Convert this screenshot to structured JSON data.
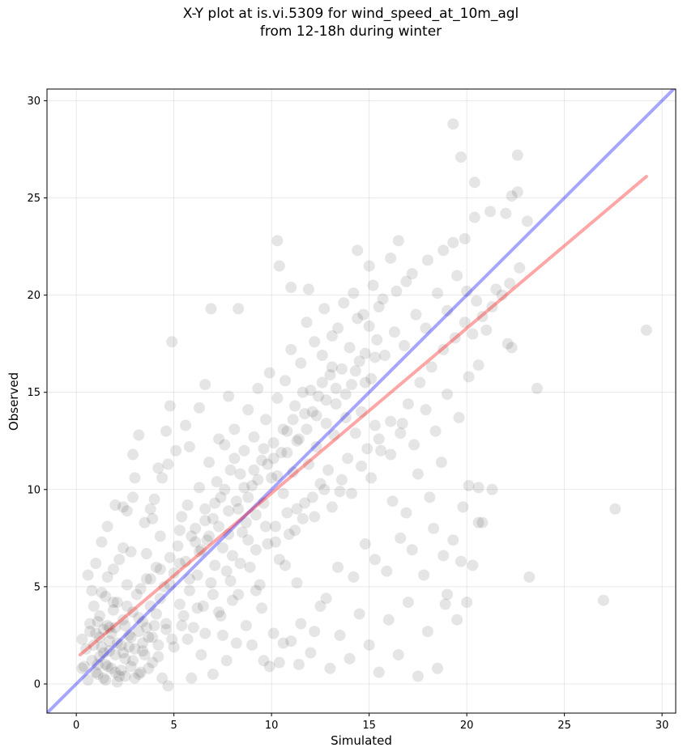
{
  "chart_data": {
    "type": "scatter",
    "title_line1": "X-Y plot at is.vi.5309 for wind_speed_at_10m_agl",
    "title_line2": "from 12-18h during winter",
    "xlabel": "Simulated",
    "ylabel": "Observed",
    "xlim": [
      -1.5,
      30.7
    ],
    "ylim": [
      -1.5,
      30.6
    ],
    "xticks": [
      0,
      5,
      10,
      15,
      20,
      25,
      30
    ],
    "yticks": [
      0,
      5,
      10,
      15,
      20,
      25,
      30
    ],
    "grid": true,
    "point_color": "#000000",
    "point_opacity": 0.1,
    "lines": [
      {
        "role": "one-to-one",
        "color": "#0000ff",
        "opacity": 0.35,
        "points": [
          [
            -1.5,
            -1.5
          ],
          [
            30.7,
            30.7
          ]
        ]
      },
      {
        "role": "regression-fit",
        "color": "#ff0000",
        "opacity": 0.35,
        "points": [
          [
            0.2,
            1.5
          ],
          [
            29.2,
            26.1
          ]
        ]
      }
    ],
    "points": [
      [
        0.3,
        2.3
      ],
      [
        0.5,
        1.8
      ],
      [
        0.7,
        3.1
      ],
      [
        0.8,
        1.2
      ],
      [
        0.9,
        4.0
      ],
      [
        1.0,
        2.6
      ],
      [
        1.1,
        0.5
      ],
      [
        1.2,
        3.5
      ],
      [
        1.3,
        1.9
      ],
      [
        1.4,
        2.8
      ],
      [
        1.5,
        4.5
      ],
      [
        1.5,
        1.0
      ],
      [
        1.6,
        3.0
      ],
      [
        1.7,
        2.2
      ],
      [
        1.8,
        0.8
      ],
      [
        1.9,
        3.8
      ],
      [
        2.0,
        1.5
      ],
      [
        2.0,
        2.9
      ],
      [
        2.1,
        4.2
      ],
      [
        2.2,
        0.4
      ],
      [
        2.3,
        2.0
      ],
      [
        2.4,
        3.3
      ],
      [
        2.5,
        1.3
      ],
      [
        2.6,
        5.1
      ],
      [
        2.7,
        2.5
      ],
      [
        2.8,
        0.9
      ],
      [
        2.9,
        3.7
      ],
      [
        3.0,
        1.8
      ],
      [
        3.1,
        4.6
      ],
      [
        3.2,
        2.7
      ],
      [
        3.3,
        0.6
      ],
      [
        3.4,
        3.2
      ],
      [
        3.5,
        1.5
      ],
      [
        3.6,
        5.4
      ],
      [
        3.7,
        2.4
      ],
      [
        3.8,
        4.0
      ],
      [
        3.9,
        1.1
      ],
      [
        4.0,
        3.0
      ],
      [
        4.1,
        6.0
      ],
      [
        4.2,
        2.0
      ],
      [
        0.4,
        0.9
      ],
      [
        0.6,
        5.6
      ],
      [
        1.0,
        6.2
      ],
      [
        1.3,
        7.3
      ],
      [
        0.8,
        4.8
      ],
      [
        1.6,
        5.5
      ],
      [
        2.2,
        6.4
      ],
      [
        2.4,
        7.0
      ],
      [
        1.9,
        5.9
      ],
      [
        2.8,
        6.8
      ],
      [
        1.2,
        1.4
      ],
      [
        1.4,
        0.3
      ],
      [
        1.7,
        1.7
      ],
      [
        2.3,
        0.7
      ],
      [
        2.7,
        1.9
      ],
      [
        3.0,
        0.3
      ],
      [
        3.4,
        2.1
      ],
      [
        1.1,
        3.2
      ],
      [
        0.9,
        2.0
      ],
      [
        1.8,
        2.6
      ],
      [
        4.3,
        4.4
      ],
      [
        4.5,
        5.0
      ],
      [
        4.6,
        3.1
      ],
      [
        4.8,
        6.5
      ],
      [
        4.9,
        2.3
      ],
      [
        5.0,
        5.7
      ],
      [
        5.2,
        7.1
      ],
      [
        5.3,
        4.1
      ],
      [
        5.4,
        8.6
      ],
      [
        5.5,
        3.5
      ],
      [
        5.6,
        6.3
      ],
      [
        5.7,
        9.2
      ],
      [
        5.8,
        4.8
      ],
      [
        5.9,
        7.6
      ],
      [
        6.0,
        2.9
      ],
      [
        6.1,
        8.0
      ],
      [
        6.2,
        5.6
      ],
      [
        6.3,
        10.1
      ],
      [
        6.4,
        6.9
      ],
      [
        6.5,
        4.0
      ],
      [
        6.6,
        9.0
      ],
      [
        6.7,
        7.4
      ],
      [
        6.8,
        11.4
      ],
      [
        6.9,
        5.2
      ],
      [
        7.0,
        8.5
      ],
      [
        7.1,
        6.1
      ],
      [
        7.2,
        10.4
      ],
      [
        7.3,
        3.7
      ],
      [
        7.4,
        9.6
      ],
      [
        7.5,
        7.0
      ],
      [
        7.6,
        12.3
      ],
      [
        7.7,
        5.8
      ],
      [
        7.8,
        8.9
      ],
      [
        7.9,
        11.0
      ],
      [
        8.0,
        6.6
      ],
      [
        8.1,
        13.1
      ],
      [
        8.2,
        9.4
      ],
      [
        8.3,
        4.6
      ],
      [
        8.4,
        10.8
      ],
      [
        8.5,
        7.8
      ],
      [
        8.6,
        12.0
      ],
      [
        8.7,
        8.3
      ],
      [
        8.8,
        14.1
      ],
      [
        8.9,
        6.0
      ],
      [
        9.0,
        10.2
      ],
      [
        9.1,
        12.7
      ],
      [
        9.2,
        8.7
      ],
      [
        9.3,
        15.2
      ],
      [
        9.4,
        5.1
      ],
      [
        9.5,
        11.5
      ],
      [
        9.6,
        9.3
      ],
      [
        9.7,
        13.6
      ],
      [
        9.8,
        7.2
      ],
      [
        9.9,
        16.0
      ],
      [
        10.0,
        10.6
      ],
      [
        10.1,
        12.4
      ],
      [
        10.2,
        8.1
      ],
      [
        10.3,
        14.7
      ],
      [
        10.4,
        6.4
      ],
      [
        10.5,
        11.9
      ],
      [
        10.6,
        9.8
      ],
      [
        10.7,
        15.6
      ],
      [
        10.8,
        13.0
      ],
      [
        10.9,
        7.7
      ],
      [
        11.0,
        17.2
      ],
      [
        11.1,
        10.9
      ],
      [
        11.2,
        14.3
      ],
      [
        11.3,
        9.0
      ],
      [
        11.4,
        12.6
      ],
      [
        11.5,
        16.5
      ],
      [
        11.6,
        8.5
      ],
      [
        11.7,
        13.9
      ],
      [
        11.8,
        18.6
      ],
      [
        11.9,
        11.3
      ],
      [
        12.0,
        15.1
      ],
      [
        12.1,
        9.6
      ],
      [
        12.2,
        17.6
      ],
      [
        12.3,
        12.2
      ],
      [
        12.4,
        14.8
      ],
      [
        12.5,
        10.3
      ],
      [
        12.6,
        16.9
      ],
      [
        12.7,
        19.3
      ],
      [
        12.8,
        13.4
      ],
      [
        12.9,
        11.0
      ],
      [
        13.0,
        15.9
      ],
      [
        13.1,
        17.9
      ],
      [
        13.2,
        12.8
      ],
      [
        13.3,
        14.4
      ],
      [
        13.4,
        18.3
      ],
      [
        13.5,
        9.9
      ],
      [
        13.6,
        16.2
      ],
      [
        13.7,
        19.6
      ],
      [
        13.8,
        13.7
      ],
      [
        13.9,
        11.6
      ],
      [
        14.0,
        17.3
      ],
      [
        14.1,
        15.4
      ],
      [
        14.2,
        20.1
      ],
      [
        14.3,
        12.9
      ],
      [
        14.4,
        18.8
      ],
      [
        14.5,
        16.6
      ],
      [
        14.6,
        14.0
      ],
      [
        14.7,
        19.0
      ],
      [
        14.8,
        17.0
      ],
      [
        14.9,
        12.1
      ],
      [
        15.0,
        18.4
      ],
      [
        15.1,
        15.7
      ],
      [
        15.2,
        20.5
      ],
      [
        15.3,
        13.3
      ],
      [
        15.4,
        17.7
      ],
      [
        15.5,
        19.4
      ],
      [
        3.5,
        8.3
      ],
      [
        4.0,
        9.5
      ],
      [
        4.4,
        10.6
      ],
      [
        4.7,
        11.3
      ],
      [
        3.8,
        9.0
      ],
      [
        5.1,
        12.0
      ],
      [
        5.6,
        13.3
      ],
      [
        4.6,
        13.0
      ],
      [
        4.8,
        14.3
      ],
      [
        5.8,
        12.2
      ],
      [
        6.3,
        14.2
      ],
      [
        6.6,
        15.4
      ],
      [
        7.3,
        12.6
      ],
      [
        7.8,
        14.8
      ],
      [
        8.3,
        19.3
      ],
      [
        6.9,
        19.3
      ],
      [
        4.9,
        17.6
      ],
      [
        5.3,
        7.9
      ],
      [
        4.3,
        7.6
      ],
      [
        3.6,
        6.7
      ],
      [
        2.9,
        11.8
      ],
      [
        3.2,
        12.8
      ],
      [
        2.4,
        9.1
      ],
      [
        1.6,
        8.1
      ],
      [
        2.0,
        9.2
      ],
      [
        2.6,
        8.9
      ],
      [
        3.0,
        10.6
      ],
      [
        3.9,
        8.5
      ],
      [
        4.2,
        11.1
      ],
      [
        2.9,
        9.6
      ],
      [
        9.5,
        3.9
      ],
      [
        10.1,
        2.6
      ],
      [
        10.4,
        1.1
      ],
      [
        9.9,
        0.9
      ],
      [
        11.0,
        2.2
      ],
      [
        11.5,
        3.1
      ],
      [
        12.0,
        1.6
      ],
      [
        12.5,
        4.0
      ],
      [
        13.0,
        0.8
      ],
      [
        13.5,
        2.5
      ],
      [
        14.0,
        1.3
      ],
      [
        14.5,
        3.6
      ],
      [
        15.0,
        2.0
      ],
      [
        15.5,
        0.6
      ],
      [
        16.0,
        3.3
      ],
      [
        16.5,
        1.5
      ],
      [
        17.0,
        4.2
      ],
      [
        17.5,
        0.4
      ],
      [
        18.0,
        2.7
      ],
      [
        18.5,
        0.8
      ],
      [
        19.0,
        4.6
      ],
      [
        19.5,
        3.3
      ],
      [
        20.0,
        4.2
      ],
      [
        12.8,
        4.4
      ],
      [
        11.3,
        5.2
      ],
      [
        10.7,
        6.1
      ],
      [
        9.2,
        4.8
      ],
      [
        8.7,
        3.0
      ],
      [
        8.0,
        4.3
      ],
      [
        7.5,
        2.5
      ],
      [
        13.4,
        6.0
      ],
      [
        14.2,
        5.5
      ],
      [
        14.8,
        7.2
      ],
      [
        15.3,
        6.4
      ],
      [
        15.9,
        5.8
      ],
      [
        16.6,
        7.5
      ],
      [
        17.2,
        6.9
      ],
      [
        17.8,
        5.6
      ],
      [
        18.3,
        8.0
      ],
      [
        18.8,
        6.6
      ],
      [
        19.3,
        7.4
      ],
      [
        19.8,
        9.1
      ],
      [
        20.3,
        6.1
      ],
      [
        20.8,
        8.3
      ],
      [
        21.3,
        10.0
      ],
      [
        16.2,
        9.4
      ],
      [
        16.9,
        8.8
      ],
      [
        17.5,
        10.8
      ],
      [
        18.1,
        9.6
      ],
      [
        18.7,
        11.4
      ],
      [
        15.5,
        12.6
      ],
      [
        16.1,
        11.8
      ],
      [
        16.7,
        13.4
      ],
      [
        17.3,
        12.3
      ],
      [
        17.9,
        14.1
      ],
      [
        18.4,
        13.0
      ],
      [
        19.0,
        14.9
      ],
      [
        19.6,
        13.7
      ],
      [
        20.1,
        15.8
      ],
      [
        20.6,
        16.4
      ],
      [
        15.8,
        16.9
      ],
      [
        16.3,
        18.1
      ],
      [
        16.8,
        17.4
      ],
      [
        17.4,
        19.0
      ],
      [
        17.9,
        18.3
      ],
      [
        18.5,
        20.1
      ],
      [
        19.0,
        19.2
      ],
      [
        19.5,
        21.0
      ],
      [
        20.0,
        20.2
      ],
      [
        20.5,
        19.7
      ],
      [
        16.4,
        20.2
      ],
      [
        17.2,
        21.1
      ],
      [
        18.0,
        21.8
      ],
      [
        18.8,
        22.3
      ],
      [
        19.3,
        22.7
      ],
      [
        19.9,
        22.9
      ],
      [
        20.4,
        24.0
      ],
      [
        21.2,
        24.3
      ],
      [
        22.0,
        24.2
      ],
      [
        22.3,
        25.1
      ],
      [
        22.6,
        25.3
      ],
      [
        23.1,
        23.8
      ],
      [
        22.6,
        27.2
      ],
      [
        19.7,
        27.1
      ],
      [
        19.3,
        28.8
      ],
      [
        20.4,
        25.8
      ],
      [
        21.5,
        20.3
      ],
      [
        22.1,
        17.5
      ],
      [
        22.3,
        17.3
      ],
      [
        21.0,
        18.2
      ],
      [
        23.6,
        15.2
      ],
      [
        23.2,
        5.5
      ],
      [
        27.0,
        4.3
      ],
      [
        27.6,
        9.0
      ],
      [
        29.2,
        18.2
      ],
      [
        20.6,
        10.1
      ],
      [
        20.1,
        10.2
      ],
      [
        20.6,
        8.3
      ],
      [
        19.7,
        6.3
      ],
      [
        18.9,
        4.1
      ],
      [
        16.5,
        22.8
      ],
      [
        16.9,
        20.7
      ],
      [
        10.3,
        22.8
      ],
      [
        10.4,
        21.5
      ],
      [
        11.0,
        20.4
      ],
      [
        11.9,
        20.3
      ],
      [
        15.0,
        21.5
      ],
      [
        14.4,
        22.3
      ],
      [
        15.7,
        19.8
      ],
      [
        16.1,
        21.9
      ],
      [
        0.3,
        0.8
      ],
      [
        0.6,
        0.2
      ],
      [
        1.0,
        0.6
      ],
      [
        1.5,
        0.2
      ],
      [
        2.1,
        0.1
      ],
      [
        2.5,
        0.4
      ],
      [
        3.2,
        0.5
      ],
      [
        3.7,
        0.8
      ],
      [
        4.4,
        0.3
      ],
      [
        4.7,
        -0.1
      ],
      [
        5.9,
        0.3
      ],
      [
        6.4,
        1.5
      ],
      [
        7.0,
        0.5
      ],
      [
        7.7,
        1.2
      ],
      [
        8.2,
        2.1
      ],
      [
        9.0,
        2.0
      ],
      [
        9.6,
        1.2
      ],
      [
        10.6,
        2.1
      ],
      [
        11.4,
        1.0
      ],
      [
        12.2,
        2.7
      ],
      [
        4.1,
        3.6
      ],
      [
        4.6,
        2.8
      ],
      [
        5.0,
        1.9
      ],
      [
        5.4,
        3.0
      ],
      [
        5.7,
        2.3
      ],
      [
        6.2,
        3.9
      ],
      [
        6.6,
        2.6
      ],
      [
        7.0,
        4.6
      ],
      [
        7.4,
        3.5
      ],
      [
        7.9,
        5.3
      ],
      [
        8.4,
        6.2
      ],
      [
        8.8,
        7.4
      ],
      [
        9.2,
        6.9
      ],
      [
        9.7,
        8.1
      ],
      [
        10.2,
        7.3
      ],
      [
        10.8,
        8.8
      ],
      [
        11.2,
        7.9
      ],
      [
        11.7,
        9.3
      ],
      [
        12.2,
        8.6
      ],
      [
        12.7,
        10.0
      ],
      [
        13.1,
        9.1
      ],
      [
        13.6,
        10.5
      ],
      [
        14.1,
        9.8
      ],
      [
        14.6,
        11.2
      ],
      [
        15.1,
        10.6
      ],
      [
        15.6,
        12.0
      ],
      [
        16.1,
        13.5
      ],
      [
        16.6,
        12.9
      ],
      [
        17.0,
        14.4
      ],
      [
        17.6,
        15.5
      ],
      [
        18.2,
        16.3
      ],
      [
        18.8,
        17.2
      ],
      [
        19.4,
        17.8
      ],
      [
        19.9,
        18.6
      ],
      [
        20.3,
        18.0
      ],
      [
        20.8,
        18.9
      ],
      [
        21.3,
        19.4
      ],
      [
        21.8,
        20.0
      ],
      [
        22.2,
        20.6
      ],
      [
        22.7,
        21.4
      ],
      [
        1.2,
        2.4
      ],
      [
        1.4,
        1.6
      ],
      [
        1.7,
        2.9
      ],
      [
        2.1,
        2.1
      ],
      [
        2.5,
        3.0
      ],
      [
        2.8,
        2.4
      ],
      [
        3.2,
        3.4
      ],
      [
        3.6,
        2.9
      ],
      [
        1.1,
        1.0
      ],
      [
        1.6,
        0.9
      ],
      [
        2.0,
        0.6
      ],
      [
        2.4,
        1.6
      ],
      [
        2.9,
        1.2
      ],
      [
        3.4,
        1.7
      ],
      [
        3.9,
        2.4
      ],
      [
        4.2,
        1.4
      ],
      [
        0.7,
        2.7
      ],
      [
        1.3,
        4.7
      ],
      [
        1.9,
        4.2
      ],
      [
        2.6,
        4.0
      ],
      [
        3.3,
        4.9
      ],
      [
        3.8,
        5.4
      ],
      [
        4.3,
        5.9
      ],
      [
        4.8,
        5.1
      ],
      [
        5.3,
        6.2
      ],
      [
        5.8,
        5.4
      ],
      [
        6.3,
        6.8
      ],
      [
        6.8,
        7.6
      ],
      [
        7.3,
        8.1
      ],
      [
        7.8,
        7.7
      ],
      [
        8.3,
        9.0
      ],
      [
        8.8,
        9.6
      ],
      [
        9.3,
        10.5
      ],
      [
        9.8,
        11.3
      ],
      [
        10.3,
        10.7
      ],
      [
        10.8,
        11.9
      ],
      [
        11.3,
        12.5
      ],
      [
        11.8,
        13.1
      ],
      [
        12.3,
        13.8
      ],
      [
        12.8,
        14.6
      ],
      [
        13.3,
        15.2
      ],
      [
        13.8,
        14.9
      ],
      [
        14.3,
        16.1
      ],
      [
        14.8,
        15.5
      ],
      [
        15.3,
        16.8
      ],
      [
        13.1,
        16.3
      ],
      [
        12.6,
        15.5
      ],
      [
        12.1,
        14.0
      ],
      [
        11.6,
        15.0
      ],
      [
        11.1,
        13.6
      ],
      [
        10.6,
        13.1
      ],
      [
        10.1,
        11.6
      ],
      [
        9.6,
        12.1
      ],
      [
        9.1,
        11.0
      ],
      [
        8.6,
        10.1
      ],
      [
        8.1,
        11.6
      ],
      [
        7.6,
        10.0
      ],
      [
        7.1,
        9.3
      ],
      [
        6.6,
        8.4
      ],
      [
        6.1,
        7.3
      ]
    ]
  }
}
